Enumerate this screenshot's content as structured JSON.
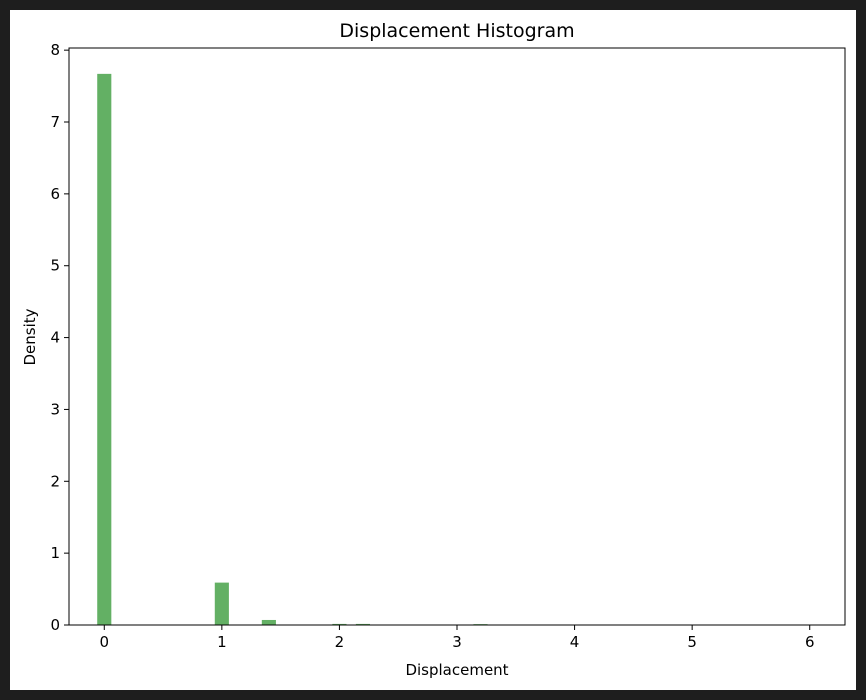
{
  "chart_data": {
    "type": "bar",
    "title": "Displacement Histogram",
    "xlabel": "Displacement",
    "ylabel": "Density",
    "xlim": [
      -0.3,
      6.3
    ],
    "ylim": [
      0,
      8.03
    ],
    "xticks": [
      0,
      1,
      2,
      3,
      4,
      5,
      6
    ],
    "yticks": [
      0,
      1,
      2,
      3,
      4,
      5,
      6,
      7,
      8
    ],
    "bin_width": 0.12,
    "bar_color": "#63b064",
    "grid": false,
    "bins": [
      {
        "x": 0.0,
        "value": 7.67
      },
      {
        "x": 1.0,
        "value": 0.59
      },
      {
        "x": 1.4,
        "value": 0.07
      },
      {
        "x": 2.0,
        "value": 0.015
      },
      {
        "x": 2.2,
        "value": 0.015
      },
      {
        "x": 3.2,
        "value": 0.012
      }
    ]
  }
}
